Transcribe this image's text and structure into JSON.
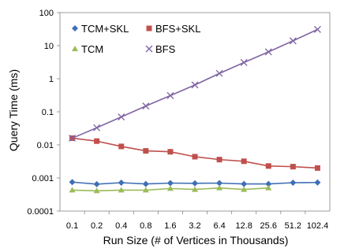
{
  "chart_data": {
    "type": "line",
    "title": "",
    "xlabel": "Run Size (# of Vertices in Thousands)",
    "ylabel": "Query Time (ms)",
    "yscale": "log",
    "ylim": [
      0.0001,
      100
    ],
    "yticks": [
      "0.0001",
      "0.001",
      "0.01",
      "0.1",
      "1",
      "10",
      "100"
    ],
    "categories": [
      "0.1",
      "0.2",
      "0.4",
      "0.8",
      "1.6",
      "3.2",
      "6.4",
      "12.8",
      "25.6",
      "51.2",
      "102.4"
    ],
    "grid": false,
    "legend_position": "top-left",
    "series": [
      {
        "name": "TCM+SKL",
        "color": "#3f6fb5",
        "marker": "diamond",
        "values": [
          0.00075,
          0.00065,
          0.00072,
          0.00066,
          0.0007,
          0.00069,
          0.0007,
          0.00066,
          0.00066,
          0.00072,
          0.00073
        ]
      },
      {
        "name": "BFS+SKL",
        "color": "#c0504d",
        "marker": "square",
        "values": [
          0.016,
          0.013,
          0.009,
          0.0066,
          0.0062,
          0.0044,
          0.0036,
          0.0032,
          0.0023,
          0.0022,
          0.002
        ]
      },
      {
        "name": "TCM",
        "color": "#9bbb59",
        "marker": "triangle",
        "values": [
          0.00043,
          0.00041,
          0.00043,
          0.00043,
          0.00048,
          0.00045,
          0.0005,
          0.00045,
          0.0005,
          null,
          null
        ]
      },
      {
        "name": "BFS",
        "color": "#8064a2",
        "marker": "x",
        "values": [
          0.016,
          0.033,
          0.07,
          0.15,
          0.31,
          0.65,
          1.45,
          3.1,
          6.5,
          14,
          31
        ]
      }
    ]
  }
}
